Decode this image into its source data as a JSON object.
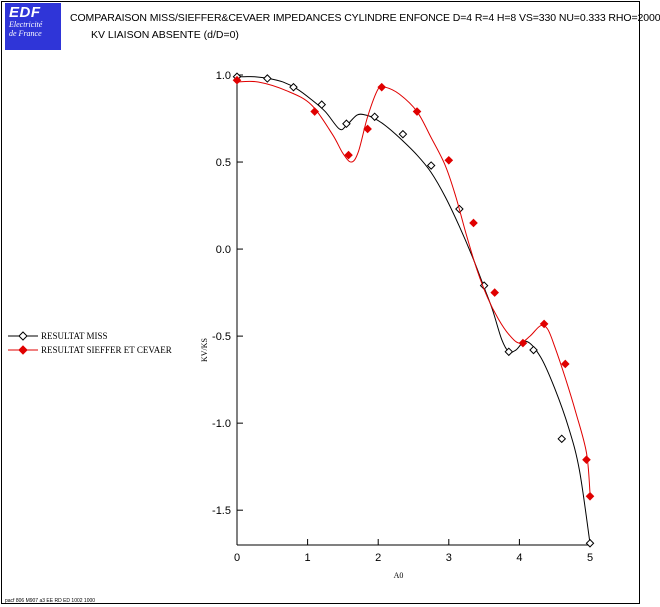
{
  "logo": {
    "main": "EDF",
    "line1": "Electricité",
    "line2": "de France"
  },
  "header": {
    "title": "COMPARAISON MISS/SIEFFER&CEVAER IMPEDANCES CYLINDRE ENFONCE D=4 R=4 H=8 VS=330 NU=0.333 RHO=2000",
    "subtitle": "KV LIAISON ABSENTE (d/D=0)"
  },
  "footer": {
    "text": "pacf 806 M907 a3 EE RD ED 1002 1000"
  },
  "colors": {
    "miss": "#000000",
    "sieffer": "#e00000",
    "logo": "#2f35d8"
  },
  "chart_data": {
    "type": "line",
    "xlabel": "A0",
    "ylabel": "KV/KS",
    "xlim": [
      0,
      5
    ],
    "ylim": [
      -1.7,
      1.0
    ],
    "xticks": [
      "0",
      "1",
      "2",
      "3",
      "4",
      "5"
    ],
    "yticks": [
      "1.0",
      "0.5",
      "0.0",
      "-0.5",
      "-1.0",
      "-1.5"
    ],
    "xtick_values": [
      0,
      1,
      2,
      3,
      4,
      5
    ],
    "ytick_values": [
      1.0,
      0.5,
      0.0,
      -0.5,
      -1.0,
      -1.5
    ],
    "legend_position": "left",
    "series": [
      {
        "name": "RESULTAT MISS",
        "marker": "diamond-open",
        "color": "#000000",
        "x": [
          0.0,
          0.1,
          0.25,
          0.45,
          0.65,
          0.85,
          1.05,
          1.25,
          1.45,
          1.55,
          1.7,
          1.82,
          1.95,
          2.1,
          2.3,
          2.55,
          2.75,
          2.95,
          3.15,
          3.35,
          3.5,
          3.62,
          3.75,
          3.85,
          3.95,
          4.1,
          4.3,
          4.5,
          4.7,
          4.85,
          5.0
        ],
        "y": [
          0.99,
          0.99,
          0.99,
          0.98,
          0.96,
          0.92,
          0.86,
          0.79,
          0.69,
          0.71,
          0.77,
          0.77,
          0.75,
          0.71,
          0.64,
          0.54,
          0.44,
          0.3,
          0.13,
          -0.06,
          -0.22,
          -0.35,
          -0.52,
          -0.59,
          -0.58,
          -0.53,
          -0.62,
          -0.8,
          -1.03,
          -1.27,
          -1.69
        ]
      },
      {
        "name": "RESULTAT SIEFFER ET CEVAER",
        "marker": "diamond-filled",
        "color": "#e00000",
        "x": [
          0.0,
          0.3,
          0.7,
          1.05,
          1.35,
          1.5,
          1.62,
          1.72,
          1.85,
          2.0,
          2.1,
          2.3,
          2.55,
          2.75,
          2.95,
          3.1,
          3.25,
          3.4,
          3.55,
          3.7,
          3.85,
          4.0,
          4.15,
          4.3,
          4.4,
          4.5,
          4.65,
          4.8,
          4.95,
          5.0
        ],
        "y": [
          0.96,
          0.96,
          0.91,
          0.83,
          0.66,
          0.55,
          0.5,
          0.56,
          0.76,
          0.92,
          0.93,
          0.89,
          0.79,
          0.64,
          0.48,
          0.3,
          0.08,
          -0.12,
          -0.28,
          -0.4,
          -0.49,
          -0.54,
          -0.5,
          -0.44,
          -0.46,
          -0.56,
          -0.74,
          -0.94,
          -1.17,
          -1.4
        ]
      }
    ],
    "marked_points": {
      "RESULTAT MISS": [
        [
          0.0,
          0.99
        ],
        [
          0.43,
          0.98
        ],
        [
          0.8,
          0.93
        ],
        [
          1.2,
          0.83
        ],
        [
          1.55,
          0.72
        ],
        [
          1.95,
          0.76
        ],
        [
          2.35,
          0.66
        ],
        [
          2.75,
          0.48
        ],
        [
          3.15,
          0.23
        ],
        [
          3.5,
          -0.21
        ],
        [
          3.85,
          -0.59
        ],
        [
          4.2,
          -0.58
        ],
        [
          4.6,
          -1.09
        ],
        [
          5.0,
          -1.69
        ]
      ],
      "RESULTAT SIEFFER ET CEVAER": [
        [
          0.0,
          0.97
        ],
        [
          1.1,
          0.79
        ],
        [
          1.58,
          0.54
        ],
        [
          1.85,
          0.69
        ],
        [
          2.05,
          0.93
        ],
        [
          2.55,
          0.79
        ],
        [
          3.0,
          0.51
        ],
        [
          3.35,
          0.15
        ],
        [
          3.65,
          -0.25
        ],
        [
          4.05,
          -0.54
        ],
        [
          4.35,
          -0.43
        ],
        [
          4.65,
          -0.66
        ],
        [
          4.95,
          -1.21
        ],
        [
          5.0,
          -1.42
        ]
      ]
    }
  },
  "legend": {
    "miss_label": "RESULTAT MISS",
    "sieffer_label": "RESULTAT SIEFFER ET CEVAER"
  }
}
